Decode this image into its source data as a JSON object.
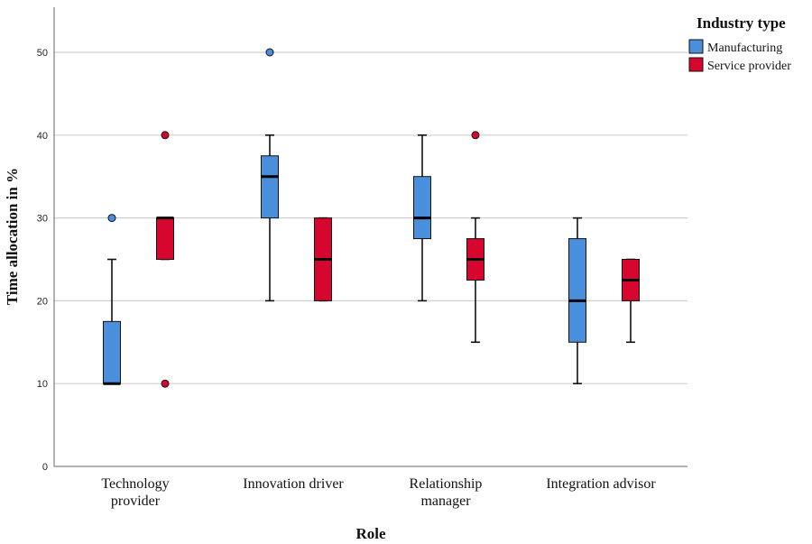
{
  "chart_data": {
    "type": "boxplot",
    "xlabel": "Role",
    "ylabel": "Time allocation in %",
    "ylim": [
      0,
      55
    ],
    "yticks": [
      0,
      10,
      20,
      30,
      40,
      50
    ],
    "grid": "horizontal",
    "legend": {
      "title": "Industry type",
      "placement": "top-right",
      "entries": [
        "Manufacturing",
        "Service provider"
      ]
    },
    "colors": {
      "Manufacturing": "#4a8fdb",
      "Service provider": "#d6062e"
    },
    "categories": [
      {
        "label": [
          "Technology",
          "provider"
        ]
      },
      {
        "label": [
          "Innovation driver"
        ]
      },
      {
        "label": [
          "Relationship",
          "manager"
        ]
      },
      {
        "label": [
          "Integration advisor"
        ]
      }
    ],
    "series": [
      {
        "name": "Manufacturing",
        "boxes": [
          {
            "min": 10,
            "q1": 10,
            "median": 10,
            "q3": 17.5,
            "max": 25,
            "outliers": [
              30
            ]
          },
          {
            "min": 20,
            "q1": 30,
            "median": 35,
            "q3": 37.5,
            "max": 40,
            "outliers": [
              50
            ]
          },
          {
            "min": 20,
            "q1": 27.5,
            "median": 30,
            "q3": 35,
            "max": 40,
            "outliers": []
          },
          {
            "min": 10,
            "q1": 15,
            "median": 20,
            "q3": 27.5,
            "max": 30,
            "outliers": []
          }
        ]
      },
      {
        "name": "Service provider",
        "boxes": [
          {
            "min": 25,
            "q1": 25,
            "median": 30,
            "q3": 30,
            "max": 30,
            "outliers": [
              10,
              40
            ]
          },
          {
            "min": 20,
            "q1": 20,
            "median": 25,
            "q3": 30,
            "max": 30,
            "outliers": []
          },
          {
            "min": 15,
            "q1": 22.5,
            "median": 25,
            "q3": 27.5,
            "max": 30,
            "outliers": [
              40
            ]
          },
          {
            "min": 15,
            "q1": 20,
            "median": 22.5,
            "q3": 25,
            "max": 25,
            "outliers": []
          }
        ]
      }
    ]
  }
}
